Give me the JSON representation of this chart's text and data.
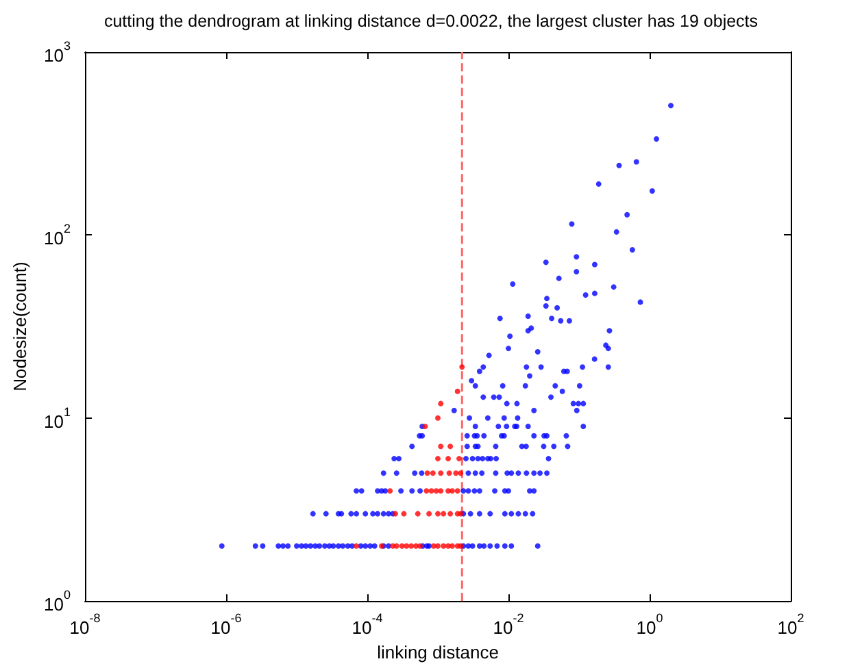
{
  "chart_data": {
    "type": "scatter",
    "title": "cutting the dendrogram at linking distance d=0.0022, the largest cluster has 19 objects",
    "xlabel": "linking distance",
    "ylabel": "Nodesize(count)",
    "log": "xy",
    "xlim": [
      1e-08,
      100
    ],
    "ylim": [
      1,
      1000
    ],
    "xticks": [
      {
        "value": 1e-08,
        "label": "10$^{-8}$"
      },
      {
        "value": 1e-06,
        "label": "10$^{-6}$"
      },
      {
        "value": 0.0001,
        "label": "10$^{-4}$"
      },
      {
        "value": 0.01,
        "label": "10$^{-2}$"
      },
      {
        "value": 1,
        "label": "10$^{0}$"
      },
      {
        "value": 100,
        "label": "10$^{2}$"
      }
    ],
    "yticks": [
      {
        "value": 1,
        "label": "10$^{0}$"
      },
      {
        "value": 10,
        "label": "10$^{1}$"
      },
      {
        "value": 100,
        "label": "10$^{2}$"
      },
      {
        "value": 1000,
        "label": "10$^{3}$"
      }
    ],
    "grid": false,
    "marker": "circle",
    "ref_lines": [
      {
        "axis": "x",
        "value": 0.0022,
        "color": "#ff6666",
        "line_style": "dashed"
      }
    ],
    "series": [
      {
        "color": "#0000ff",
        "x": [
          2.0,
          1.25,
          0.37,
          0.65,
          0.19,
          1.09,
          0.48,
          0.079,
          0.34,
          0.57,
          0.034,
          0.092,
          0.092,
          0.167,
          0.052,
          0.31,
          0.124,
          0.167,
          0.74,
          0.034,
          0.035,
          0.049,
          0.019,
          0.041,
          0.055,
          0.073,
          0.019,
          0.021,
          0.27,
          0.026,
          0.24,
          0.26,
          0.166,
          0.018,
          0.029,
          0.112,
          0.26,
          0.02,
          0.061,
          0.068,
          0.0115,
          0.0076,
          0.0105,
          0.01,
          0.0053,
          0.0044,
          0.0039,
          0.003,
          0.0034,
          0.0083,
          0.0174,
          0.046,
          0.102,
          0.058,
          0.04,
          0.0044,
          0.0062,
          0.0074,
          0.0017,
          0.0095,
          0.0132,
          0.083,
          0.098,
          0.115,
          0.093,
          0.023,
          0.0028,
          0.0051,
          0.0087,
          0.0135,
          0.0006,
          0.0034,
          0.0072,
          0.0094,
          0.0123,
          0.0131,
          0.019,
          0.115,
          0.00055,
          0.0006,
          0.0026,
          0.0033,
          0.0036,
          0.0045,
          0.008,
          0.0087,
          0.023,
          0.032,
          0.035,
          0.066,
          0.00043,
          0.0026,
          0.0034,
          0.0037,
          0.0066,
          0.0155,
          0.0178,
          0.0316,
          0.044,
          0.069,
          0.00024,
          0.00028,
          0.0025,
          0.0031,
          0.0037,
          0.0043,
          0.0051,
          0.0056,
          0.0067,
          0.037,
          0.00017,
          0.00026,
          0.00047,
          0.00059,
          0.0027,
          0.0034,
          0.0042,
          0.0066,
          0.0096,
          0.011,
          0.0138,
          0.018,
          0.023,
          0.028,
          0.035,
          7e-05,
          8.3e-05,
          0.00014,
          0.00016,
          0.00018,
          0.0003,
          0.00043,
          0.00056,
          0.0023,
          0.0027,
          0.0033,
          0.0039,
          0.0064,
          0.0089,
          0.01,
          0.02,
          0.023,
          1.7e-05,
          2.6e-05,
          3.9e-05,
          4.3e-05,
          5.9e-05,
          7e-05,
          9.4e-05,
          0.00012,
          0.00014,
          0.00017,
          0.0002,
          0.00023,
          0.0023,
          0.0029,
          0.0039,
          0.0055,
          0.0089,
          0.011,
          0.0138,
          0.0174,
          0.022,
          8.7e-07,
          2.6e-06,
          3.3e-06,
          5.5e-06,
          6.4e-06,
          7.5e-06,
          1e-05,
          1.17e-05,
          1.35e-05,
          1.57e-05,
          1.83e-05,
          2.1e-05,
          2.5e-05,
          2.9e-05,
          3.3e-05,
          3.9e-05,
          4.5e-05,
          5.3e-05,
          6.1e-05,
          8.1e-05,
          9.4e-05,
          0.00011,
          0.000127,
          0.00017,
          0.0002,
          0.00061,
          0.0007,
          0.00075,
          0.0023,
          0.0027,
          0.0031,
          0.0039,
          0.0045,
          0.0055,
          0.0069,
          0.0089,
          0.011,
          0.026
        ],
        "values": [
          510,
          335,
          240,
          251,
          190,
          174,
          129,
          115,
          104,
          83,
          71,
          76,
          63,
          69,
          58,
          52,
          47,
          48,
          43,
          41,
          45,
          40,
          36,
          35,
          34,
          34,
          30,
          31,
          30,
          23,
          25,
          24,
          21,
          19,
          19,
          19,
          19,
          17,
          18,
          18,
          54,
          35,
          28,
          24,
          22,
          19,
          18,
          16,
          15,
          15,
          15,
          15,
          15,
          14,
          13,
          13,
          13,
          13,
          11,
          12,
          12,
          12,
          12,
          12,
          11,
          11,
          10,
          10,
          10,
          10,
          9,
          9,
          9,
          9,
          9,
          9,
          9,
          9,
          8,
          8,
          8,
          8,
          8,
          8,
          8,
          8,
          8,
          8,
          8,
          8,
          7,
          7,
          7,
          7,
          7,
          7,
          7,
          7,
          7,
          7,
          6,
          6,
          6,
          6,
          6,
          6,
          6,
          6,
          6,
          6,
          5,
          5,
          5,
          5,
          5,
          5,
          5,
          5,
          5,
          5,
          5,
          5,
          5,
          5,
          5,
          4,
          4,
          4,
          4,
          4,
          4,
          4,
          4,
          4,
          4,
          4,
          4,
          4,
          4,
          4,
          4,
          4,
          3,
          3,
          3,
          3,
          3,
          3,
          3,
          3,
          3,
          3,
          3,
          3,
          3,
          3,
          3,
          3,
          3,
          3,
          3,
          3,
          3,
          2,
          2,
          2,
          2,
          2,
          2,
          2,
          2,
          2,
          2,
          2,
          2,
          2,
          2,
          2,
          2,
          2,
          2,
          2,
          2,
          2,
          2,
          2,
          2,
          2,
          2,
          2,
          2,
          2,
          2,
          2,
          2,
          2,
          2,
          2,
          2,
          2,
          2
        ]
      },
      {
        "color": "#ff0000",
        "x": [
          0.0022,
          0.0019,
          0.0011,
          0.001,
          0.00066,
          0.0011,
          0.0015,
          0.001,
          0.0014,
          0.002,
          0.00071,
          0.00085,
          0.0011,
          0.00145,
          0.0018,
          0.0021,
          0.00021,
          0.00069,
          0.00081,
          0.00095,
          0.0011,
          0.0014,
          0.0016,
          0.0019,
          0.00025,
          0.00033,
          0.00052,
          0.00075,
          0.001,
          0.0012,
          0.0015,
          0.0019,
          0.0021,
          7e-05,
          0.00016,
          0.00023,
          0.00026,
          0.00031,
          0.00036,
          0.00042,
          0.00049,
          0.00056,
          0.00087,
          0.001,
          0.0012,
          0.0014,
          0.0016,
          0.0019,
          0.0021
        ],
        "values": [
          19,
          14,
          12,
          10,
          9,
          7,
          7,
          6,
          6,
          6,
          5,
          5,
          5,
          5,
          5,
          5,
          4,
          4,
          4,
          4,
          4,
          4,
          4,
          4,
          3,
          3,
          3,
          3,
          3,
          3,
          3,
          3,
          3,
          2,
          2,
          2,
          2,
          2,
          2,
          2,
          2,
          2,
          2,
          2,
          2,
          2,
          2,
          2,
          2
        ]
      }
    ]
  }
}
